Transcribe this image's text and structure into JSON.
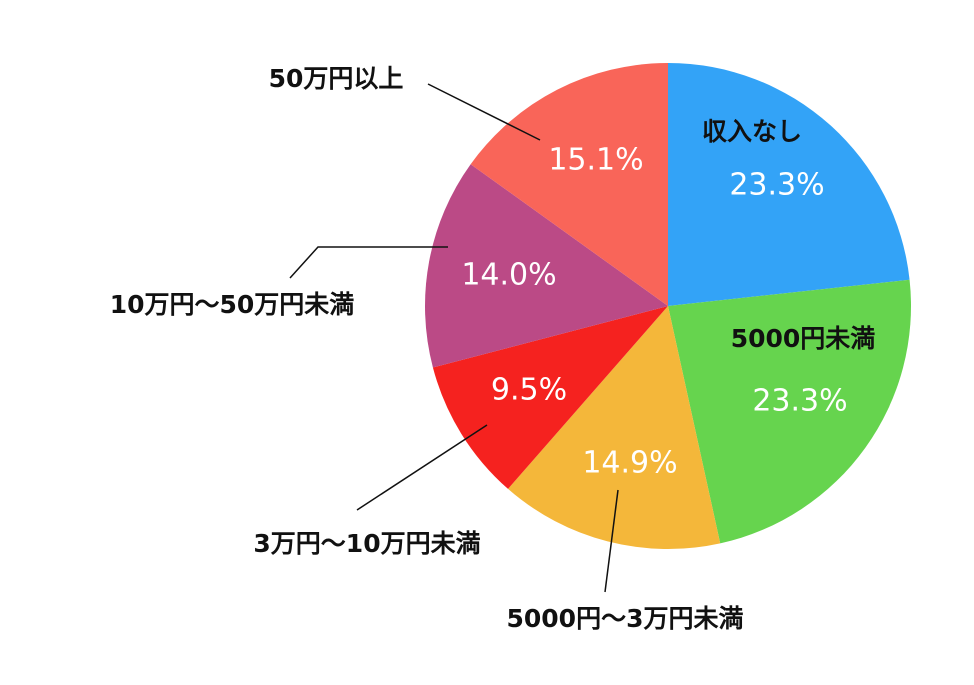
{
  "chart_data": {
    "type": "pie",
    "categories": [
      "収入なし",
      "5000円未満",
      "5000円〜3万円未満",
      "3万円〜10万円未満",
      "10万円〜50万円未満",
      "50万円以上"
    ],
    "values": [
      23.3,
      23.3,
      14.9,
      9.5,
      14.0,
      15.1
    ],
    "value_labels": [
      "23.3%",
      "23.3%",
      "14.9%",
      "9.5%",
      "14.0%",
      "15.1%"
    ],
    "colors": [
      "#33a3f7",
      "#66d44e",
      "#f4b73a",
      "#f5221f",
      "#bb4a86",
      "#f96559"
    ]
  }
}
